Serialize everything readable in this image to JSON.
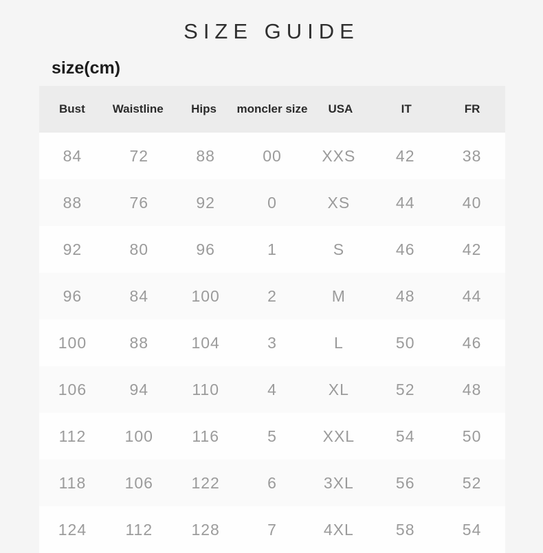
{
  "page": {
    "title": "SIZE GUIDE",
    "unit_label": "size(cm)"
  },
  "colors": {
    "page_bg": "#f5f5f5",
    "header_bg": "#ececec",
    "row_bg": "#fefefe",
    "row_alt_bg": "#fafafa",
    "header_text": "#2b2b2b",
    "cell_text": "#9b9b9b",
    "title_text": "#2f2f2f"
  },
  "table": {
    "columns": [
      "Bust",
      "Waistline",
      "Hips",
      "moncler size",
      "USA",
      "IT",
      "FR"
    ],
    "rows": [
      [
        "84",
        "72",
        "88",
        "00",
        "XXS",
        "42",
        "38"
      ],
      [
        "88",
        "76",
        "92",
        "0",
        "XS",
        "44",
        "40"
      ],
      [
        "92",
        "80",
        "96",
        "1",
        "S",
        "46",
        "42"
      ],
      [
        "96",
        "84",
        "100",
        "2",
        "M",
        "48",
        "44"
      ],
      [
        "100",
        "88",
        "104",
        "3",
        "L",
        "50",
        "46"
      ],
      [
        "106",
        "94",
        "110",
        "4",
        "XL",
        "52",
        "48"
      ],
      [
        "112",
        "100",
        "116",
        "5",
        "XXL",
        "54",
        "50"
      ],
      [
        "118",
        "106",
        "122",
        "6",
        "3XL",
        "56",
        "52"
      ],
      [
        "124",
        "112",
        "128",
        "7",
        "4XL",
        "58",
        "54"
      ]
    ]
  }
}
